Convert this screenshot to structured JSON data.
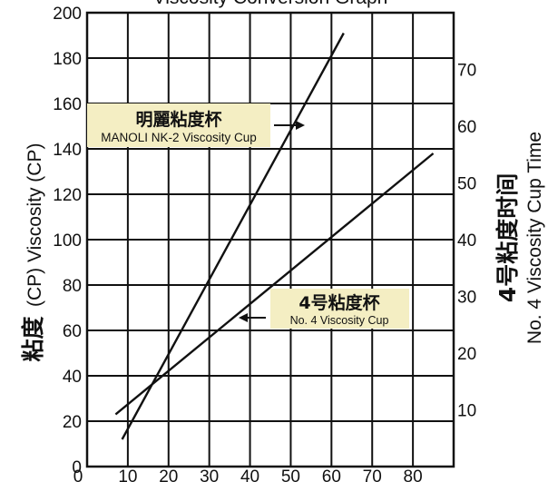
{
  "chart_data": {
    "type": "line",
    "title": "Viscosity Conversion Graph",
    "xlabel": "",
    "ylabel_cjk": "粘度",
    "ylabel": "(CP) Viscosity (CP)",
    "y2label_cjk": "4号粘度时间",
    "y2label": "No. 4 Viscosity Cup Time",
    "xlim": [
      0,
      90
    ],
    "ylim": [
      0,
      200
    ],
    "y2lim": [
      0,
      70
    ],
    "grid": true,
    "x_ticks": [
      "0",
      "10",
      "20",
      "30",
      "40",
      "50",
      "60",
      "70",
      "80"
    ],
    "y_ticks": [
      "0",
      "20",
      "40",
      "60",
      "80",
      "100",
      "120",
      "140",
      "160",
      "180",
      "200"
    ],
    "y2_ticks": [
      "10",
      "20",
      "30",
      "40",
      "50",
      "60",
      "70"
    ],
    "series": [
      {
        "name_cjk": "明麗粘度杯",
        "name": "MANOLI NK-2 Viscosity Cup",
        "color": "#111111",
        "x": [
          8.6,
          63
        ],
        "y": [
          12,
          191
        ]
      },
      {
        "name_cjk": "4号粘度杯",
        "name": "No. 4 Viscosity Cup",
        "color": "#111111",
        "x": [
          7,
          85
        ],
        "y": [
          23,
          138
        ]
      }
    ],
    "annotation_bg": "#f4eec3"
  }
}
